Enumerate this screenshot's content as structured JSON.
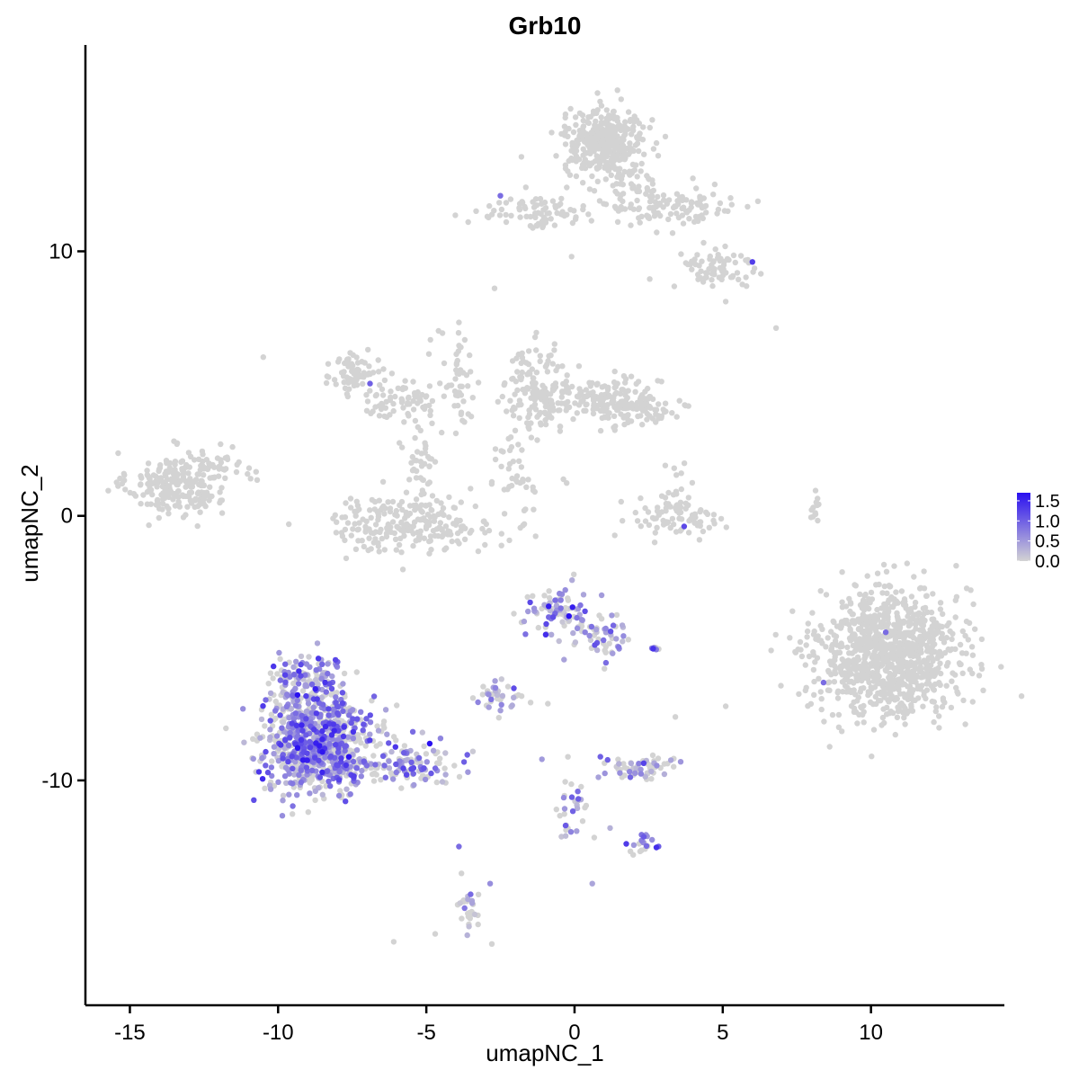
{
  "chart_data": {
    "type": "scatter",
    "title": "Grb10",
    "xlabel": "umapNC_1",
    "ylabel": "umapNC_2",
    "xlim": [
      -16.5,
      14.5
    ],
    "ylim": [
      -18.5,
      17.8
    ],
    "xticks": [
      -15,
      -10,
      -5,
      0,
      5,
      10
    ],
    "yticks": [
      -10,
      0,
      10
    ],
    "grid": false,
    "color_scale": {
      "low_color": "#d3d3d3",
      "high_color": "#2a10f0",
      "min": 0.0,
      "max": 1.7,
      "ticks": [
        "1.5",
        "1.0",
        "0.5",
        "0.0"
      ],
      "tick_values": [
        1.5,
        1.0,
        0.5,
        0.0
      ],
      "legend_position": "right"
    },
    "clusters": [
      {
        "cx": -13.4,
        "cy": 1.2,
        "sx": 1.1,
        "sy": 0.8,
        "n": 240,
        "expr": 0
      },
      {
        "cx": -11.8,
        "cy": 2.0,
        "sx": 0.7,
        "sy": 0.5,
        "n": 25,
        "expr": 0
      },
      {
        "cx": -7.4,
        "cy": 5.4,
        "sx": 0.5,
        "sy": 0.6,
        "n": 70,
        "expr": 0
      },
      {
        "cx": -5.8,
        "cy": 4.4,
        "sx": 1.0,
        "sy": 0.5,
        "n": 70,
        "expr": 0
      },
      {
        "cx": -3.9,
        "cy": 5.0,
        "sx": 0.5,
        "sy": 1.4,
        "n": 50,
        "expr": 0
      },
      {
        "cx": -5.2,
        "cy": 2.2,
        "sx": 0.4,
        "sy": 1.0,
        "n": 40,
        "expr": 0
      },
      {
        "cx": -5.5,
        "cy": -0.3,
        "sx": 1.9,
        "sy": 0.7,
        "n": 230,
        "expr": 0
      },
      {
        "cx": -1.2,
        "cy": 4.8,
        "sx": 0.8,
        "sy": 1.1,
        "n": 140,
        "expr": 0
      },
      {
        "cx": 1.0,
        "cy": 4.4,
        "sx": 1.3,
        "sy": 0.5,
        "n": 150,
        "expr": 0
      },
      {
        "cx": 2.2,
        "cy": 3.9,
        "sx": 0.8,
        "sy": 0.4,
        "n": 60,
        "expr": 0
      },
      {
        "cx": -2.0,
        "cy": 2.4,
        "sx": 0.4,
        "sy": 1.4,
        "n": 30,
        "expr": 0
      },
      {
        "cx": -1.6,
        "cy": 1.1,
        "sx": 0.9,
        "sy": 0.5,
        "n": 15,
        "expr": 0
      },
      {
        "cx": 3.4,
        "cy": -0.1,
        "sx": 1.1,
        "sy": 0.5,
        "n": 70,
        "expr": 0
      },
      {
        "cx": 3.4,
        "cy": 0.9,
        "sx": 0.4,
        "sy": 0.6,
        "n": 25,
        "expr": 0
      },
      {
        "cx": 1.0,
        "cy": 14.1,
        "sx": 0.9,
        "sy": 0.8,
        "n": 360,
        "expr": 0
      },
      {
        "cx": -1.2,
        "cy": 11.5,
        "sx": 1.4,
        "sy": 0.4,
        "n": 80,
        "expr": 0
      },
      {
        "cx": 3.2,
        "cy": 11.7,
        "sx": 1.7,
        "sy": 0.6,
        "n": 110,
        "expr": 0
      },
      {
        "cx": 4.7,
        "cy": 9.4,
        "sx": 0.9,
        "sy": 0.6,
        "n": 70,
        "expr": 0
      },
      {
        "cx": 1.9,
        "cy": 12.4,
        "sx": 0.5,
        "sy": 1.0,
        "n": 40,
        "expr": 0
      },
      {
        "cx": 10.6,
        "cy": -5.2,
        "sx": 1.6,
        "sy": 1.6,
        "n": 1050,
        "expr": 0
      },
      {
        "cx": 8.1,
        "cy": 0.3,
        "sx": 0.15,
        "sy": 0.5,
        "n": 14,
        "expr": 0
      },
      {
        "cx": -8.7,
        "cy": -8.5,
        "sx": 1.2,
        "sy": 1.3,
        "n": 850,
        "expr": 0.55
      },
      {
        "cx": -9.0,
        "cy": -6.1,
        "sx": 0.7,
        "sy": 0.6,
        "n": 100,
        "expr": 0.55
      },
      {
        "cx": -5.7,
        "cy": -9.4,
        "sx": 1.2,
        "sy": 0.5,
        "n": 130,
        "expr": 0.65
      },
      {
        "cx": -3.5,
        "cy": -14.8,
        "sx": 0.3,
        "sy": 0.7,
        "n": 30,
        "expr": 0.55
      },
      {
        "cx": -0.5,
        "cy": -3.6,
        "sx": 0.8,
        "sy": 0.7,
        "n": 90,
        "expr": 0.45
      },
      {
        "cx": 0.9,
        "cy": -4.6,
        "sx": 0.7,
        "sy": 0.7,
        "n": 50,
        "expr": 0.35
      },
      {
        "cx": -2.6,
        "cy": -6.8,
        "sx": 0.5,
        "sy": 0.4,
        "n": 40,
        "expr": 0.35
      },
      {
        "cx": 2.4,
        "cy": -9.5,
        "sx": 0.8,
        "sy": 0.3,
        "n": 60,
        "expr": 0.3
      },
      {
        "cx": -0.1,
        "cy": -11.2,
        "sx": 0.4,
        "sy": 0.9,
        "n": 30,
        "expr": 0.4
      },
      {
        "cx": 2.3,
        "cy": -12.5,
        "sx": 0.4,
        "sy": 0.3,
        "n": 20,
        "expr": 0.6
      },
      {
        "cx": 2.8,
        "cy": -5.0,
        "sx": 0.15,
        "sy": 0.1,
        "n": 6,
        "expr": 0.5
      }
    ],
    "outliers": [
      [
        -10.5,
        6.0,
        0
      ],
      [
        -0.1,
        9.8,
        0
      ],
      [
        -2.7,
        8.6,
        0
      ],
      [
        6.8,
        7.1,
        0
      ],
      [
        5.1,
        8.1,
        0
      ],
      [
        -6.1,
        -16.1,
        0
      ],
      [
        -4.7,
        -15.8,
        0
      ],
      [
        -3.9,
        -12.5,
        0.9
      ],
      [
        0.6,
        -13.9,
        0.4
      ],
      [
        5.1,
        -7.2,
        0
      ],
      [
        3.4,
        -7.6,
        0
      ],
      [
        -0.9,
        -7.1,
        0
      ],
      [
        -1.1,
        -9.2,
        0.5
      ],
      [
        8.4,
        -6.3,
        0.9
      ],
      [
        10.5,
        -4.4,
        0.9
      ],
      [
        6.0,
        9.6,
        1.3
      ],
      [
        3.7,
        -0.4,
        1.2
      ],
      [
        -6.9,
        5.0,
        1.0
      ],
      [
        -2.5,
        12.1,
        0.9
      ],
      [
        -0.3,
        -12.1,
        0.2
      ],
      [
        1.2,
        -11.8,
        0.3
      ]
    ]
  }
}
